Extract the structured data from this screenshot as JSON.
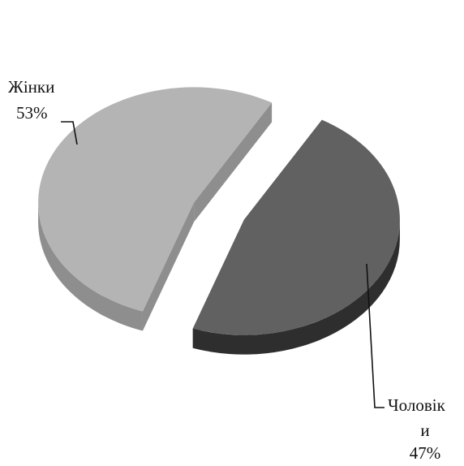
{
  "chart_data": {
    "type": "pie",
    "style": "3d-exploded",
    "legend": "none",
    "slices": [
      {
        "label": "Жінки",
        "value": 53,
        "value_label": "53%",
        "color": "#b4b4b4",
        "side_color": "#8e8e8e"
      },
      {
        "label": "Чоловік и",
        "label_lines": [
          "Чоловік",
          "и"
        ],
        "value": 47,
        "value_label": "47%",
        "color": "#616161",
        "side_color": "#2e2e2e"
      }
    ]
  }
}
